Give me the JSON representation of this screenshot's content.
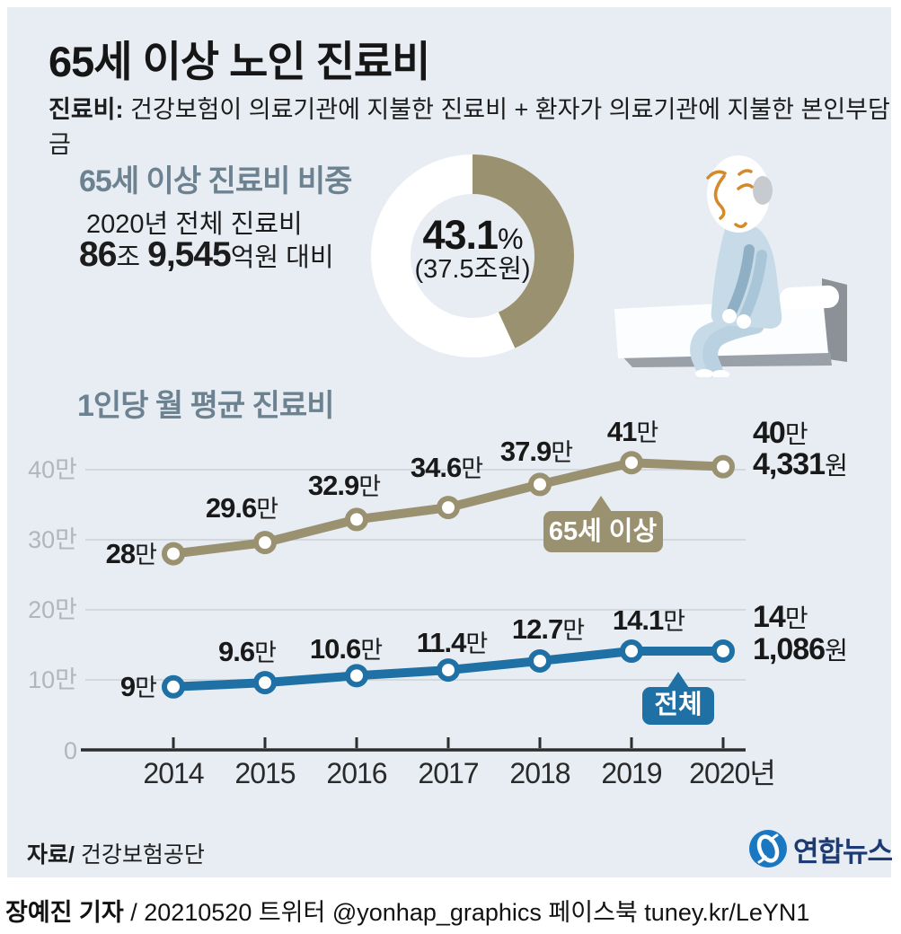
{
  "colors": {
    "canvas_bg": "#e7edf3",
    "elderly_olive": "#9a9170",
    "total_blue": "#1f70a4",
    "heading_slate": "#6d8290",
    "logo_navy": "#1c3a73",
    "grid_gray": "#d3d8de",
    "axis_dark": "#2d2d2d"
  },
  "header": {
    "title": "65세 이상 노인 진료비",
    "definition_label": "진료비:",
    "definition_text": "건강보험이 의료기관에 지불한 진료비 + 환자가 의료기관에 지불한 본인부담금"
  },
  "donut": {
    "heading": "65세 이상 진료비 비중",
    "subline1": "2020년 전체 진료비",
    "subline2": {
      "num1": "86",
      "unit1": "조",
      "num2": "9,545",
      "unit2": "억원 대비"
    },
    "percent": 43.1,
    "center_value": "43.1",
    "center_unit": "%",
    "center_sub": "(37.5조원)"
  },
  "chart_data": {
    "type": "line",
    "title": "1인당 월 평균 진료비",
    "x_labels": [
      "2014",
      "2015",
      "2016",
      "2017",
      "2018",
      "2019",
      "2020년"
    ],
    "y_ticks": [
      "40만",
      "30만",
      "20만",
      "10만",
      "0"
    ],
    "ylim_man_won": [
      0,
      45
    ],
    "grid": true,
    "legend_position": "on-chart badges",
    "series": [
      {
        "name": "65세 이상",
        "color": "#9a9170",
        "values_man_won": [
          28,
          29.6,
          32.9,
          34.6,
          37.9,
          41,
          40.4331
        ],
        "point_labels": [
          {
            "num": "28",
            "suf": "만"
          },
          {
            "num": "29.6",
            "suf": "만"
          },
          {
            "num": "32.9",
            "suf": "만"
          },
          {
            "num": "34.6",
            "suf": "만"
          },
          {
            "num": "37.9",
            "suf": "만"
          },
          {
            "num": "41",
            "suf": "만"
          }
        ],
        "final_label": {
          "line1_num": "40",
          "line1_suf": "만",
          "line2_num": "4,331",
          "line2_suf": "원"
        }
      },
      {
        "name": "전체",
        "color": "#1f70a4",
        "values_man_won": [
          9,
          9.6,
          10.6,
          11.4,
          12.7,
          14.1,
          14.1086
        ],
        "point_labels": [
          {
            "num": "9",
            "suf": "만"
          },
          {
            "num": "9.6",
            "suf": "만"
          },
          {
            "num": "10.6",
            "suf": "만"
          },
          {
            "num": "11.4",
            "suf": "만"
          },
          {
            "num": "12.7",
            "suf": "만"
          },
          {
            "num": "14.1",
            "suf": "만"
          }
        ],
        "final_label": {
          "line1_num": "14",
          "line1_suf": "만",
          "line2_num": "1,086",
          "line2_suf": "원"
        }
      }
    ]
  },
  "footer": {
    "source_label": "자료/",
    "source_text": "건강보험공단",
    "logo_text": "연합뉴스"
  },
  "byline": {
    "author": "장예진 기자",
    "rest": " / 20210520 트위터 @yonhap_graphics  페이스북 tuney.kr/LeYN1"
  }
}
